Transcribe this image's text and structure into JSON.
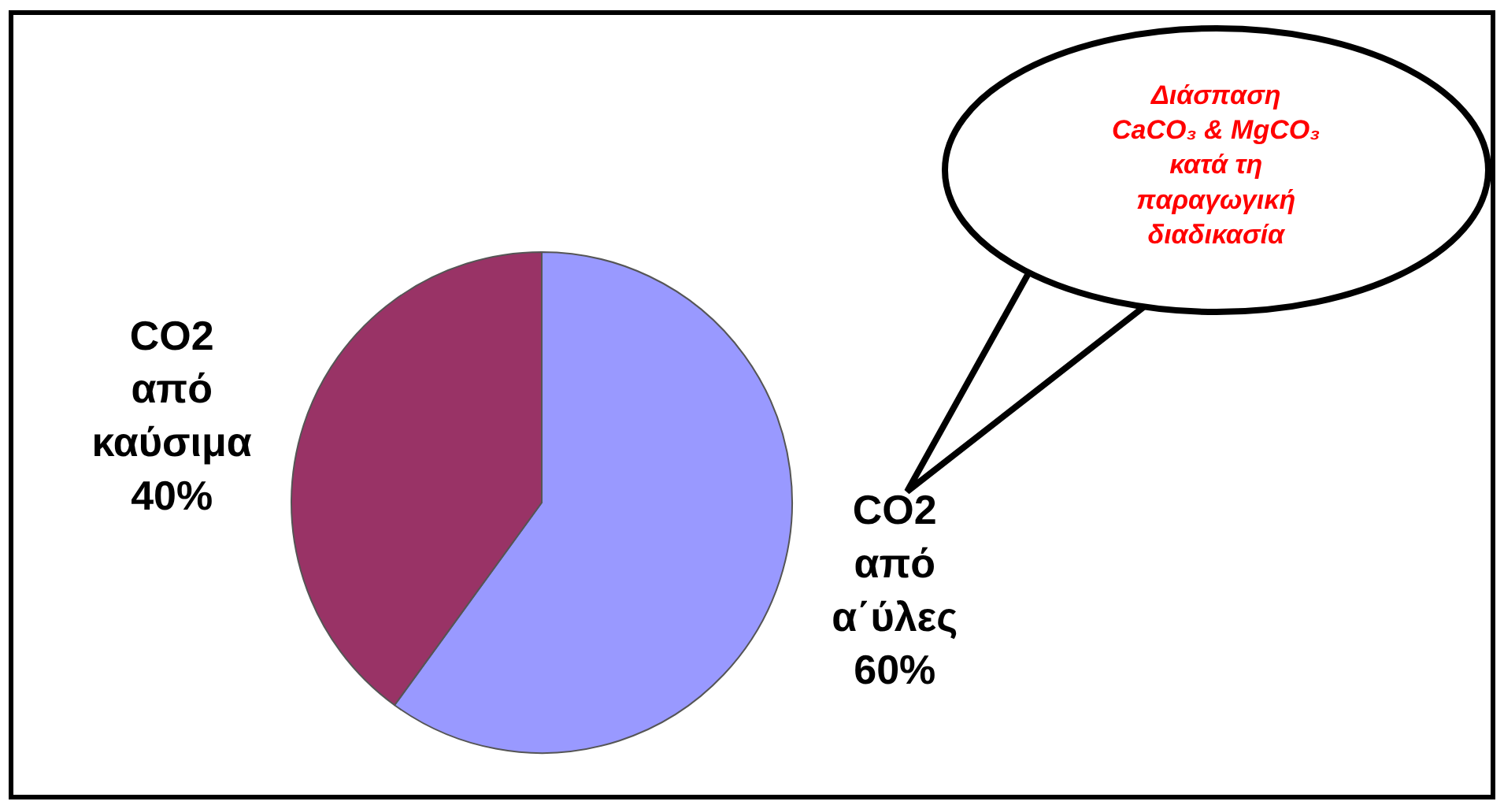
{
  "chart_data": {
    "type": "pie",
    "categories": [
      "CO2 από α΄ύλες",
      "CO2 από καύσιμα"
    ],
    "values": [
      60,
      40
    ],
    "value_labels": [
      "60%",
      "40%"
    ],
    "colors": [
      "#9999ff",
      "#993366"
    ],
    "legend": false,
    "annotations": [
      "Διάσπαση\nCaCO₃ & MgCO₃\nκατά τη\nπαραγωγική\nδιαδικασία"
    ]
  }
}
